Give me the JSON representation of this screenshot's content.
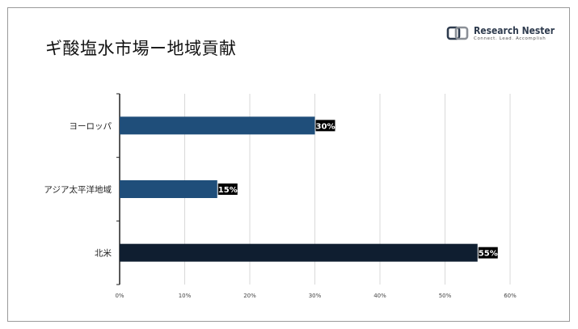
{
  "page": {
    "title": "ギ酸塩水市場ー地域貢献"
  },
  "logo": {
    "name": "Research Nester",
    "tagline": "Connect. Lead. Accomplish"
  },
  "chart_data": {
    "type": "bar",
    "orientation": "horizontal",
    "categories": [
      "ヨーロッパ",
      "アジア太平洋地域",
      "北米"
    ],
    "values": [
      30,
      15,
      55
    ],
    "value_labels": [
      "30%",
      "15%",
      "55%"
    ],
    "xlim": [
      0,
      60
    ],
    "xticks": [
      0,
      10,
      20,
      30,
      40,
      50,
      60
    ],
    "xtick_labels": [
      "0%",
      "10%",
      "20%",
      "30%",
      "40%",
      "50%",
      "60%"
    ],
    "colors": [
      "#1f4e7a",
      "#1f4e7a",
      "#0f1e30"
    ],
    "grid": "vertical",
    "legend": "none"
  }
}
